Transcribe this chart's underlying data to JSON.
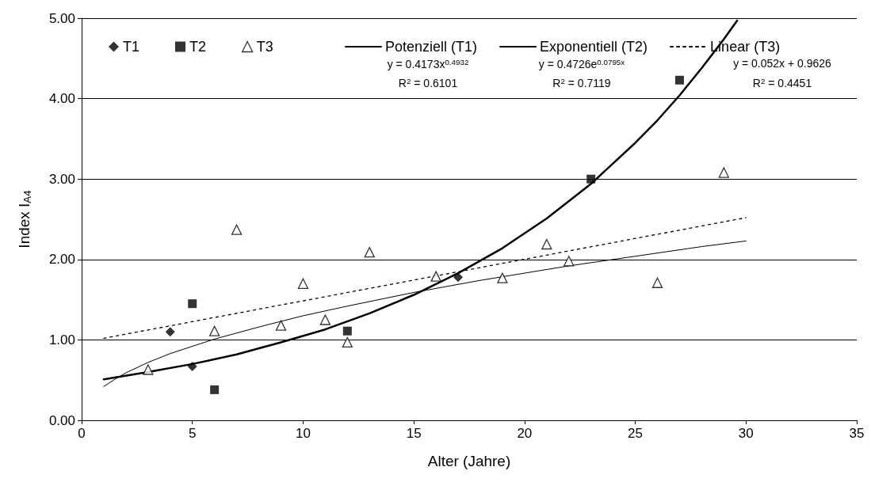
{
  "chart_data": {
    "type": "scatter",
    "xlabel": "Alter (Jahre)",
    "ylabel": "Index I$_{A4}$",
    "xlim": [
      0,
      35
    ],
    "xticks": [
      0,
      5,
      10,
      15,
      20,
      25,
      30,
      35
    ],
    "ylim": [
      0,
      5
    ],
    "yticks": [
      {
        "value": 0,
        "label": "0.00"
      },
      {
        "value": 1,
        "label": "1.00"
      },
      {
        "value": 2,
        "label": "2.00"
      },
      {
        "value": 3,
        "label": "3.00"
      },
      {
        "value": 4,
        "label": "4.00"
      },
      {
        "value": 5,
        "label": "5.00"
      }
    ],
    "grid": "y",
    "legend": "top",
    "series": [
      {
        "name": "T1",
        "type": "scatter",
        "marker": "diamond",
        "color": "#000000",
        "x": [
          4,
          5,
          17
        ],
        "values": [
          1.1,
          0.67,
          1.78
        ]
      },
      {
        "name": "T2",
        "type": "scatter",
        "marker": "square",
        "color": "#000000",
        "x": [
          5,
          6,
          12,
          23,
          27
        ],
        "values": [
          1.45,
          0.38,
          1.11,
          3.0,
          4.23
        ]
      },
      {
        "name": "T3",
        "type": "scatter",
        "marker": "triangle",
        "color": "#000000",
        "x": [
          3,
          6,
          7,
          9,
          10,
          11,
          12,
          13,
          16,
          19,
          21,
          22,
          26,
          29
        ],
        "values": [
          0.63,
          1.11,
          2.37,
          1.18,
          1.7,
          1.25,
          0.97,
          2.09,
          1.79,
          1.77,
          2.19,
          1.98,
          1.71,
          3.08
        ]
      },
      {
        "name": "Potenziell (T1)",
        "type": "line",
        "marker": "none",
        "line_style": "solid",
        "color": "#000000",
        "x": [
          1,
          1.5,
          2,
          3,
          4,
          5,
          6,
          8,
          10,
          12,
          15,
          18,
          20,
          22,
          25,
          28,
          30
        ],
        "values": [
          0.42,
          0.51,
          0.59,
          0.72,
          0.83,
          0.92,
          1.01,
          1.16,
          1.3,
          1.42,
          1.59,
          1.74,
          1.83,
          1.92,
          2.04,
          2.16,
          2.23
        ]
      },
      {
        "name": "Exponentiell (T2)",
        "type": "line",
        "marker": "none",
        "line_style": "solid",
        "color": "#000000",
        "x": [
          1,
          3,
          5,
          7,
          9,
          11,
          13,
          15,
          17,
          19,
          21,
          23,
          25,
          26,
          27,
          28,
          29,
          29.6
        ],
        "values": [
          0.51,
          0.6,
          0.7,
          0.82,
          0.97,
          1.13,
          1.33,
          1.56,
          1.83,
          2.14,
          2.51,
          2.94,
          3.45,
          3.73,
          4.04,
          4.38,
          4.74,
          4.97
        ]
      },
      {
        "name": "Linear (T3)",
        "type": "line",
        "marker": "none",
        "line_style": "dotted",
        "color": "#000000",
        "x": [
          1,
          30
        ],
        "values": [
          1.02,
          2.52
        ]
      }
    ],
    "annotations": [
      "y = 0.4173x$^{0.4932}$",
      "R$^{2}$ = 0.6101",
      "y = 0.4726e$^{0.0795x}$",
      "R$^{2}$ = 0.7119",
      "y = 0.052x + 0.9626",
      "R$^{2}$ = 0.4451"
    ]
  }
}
